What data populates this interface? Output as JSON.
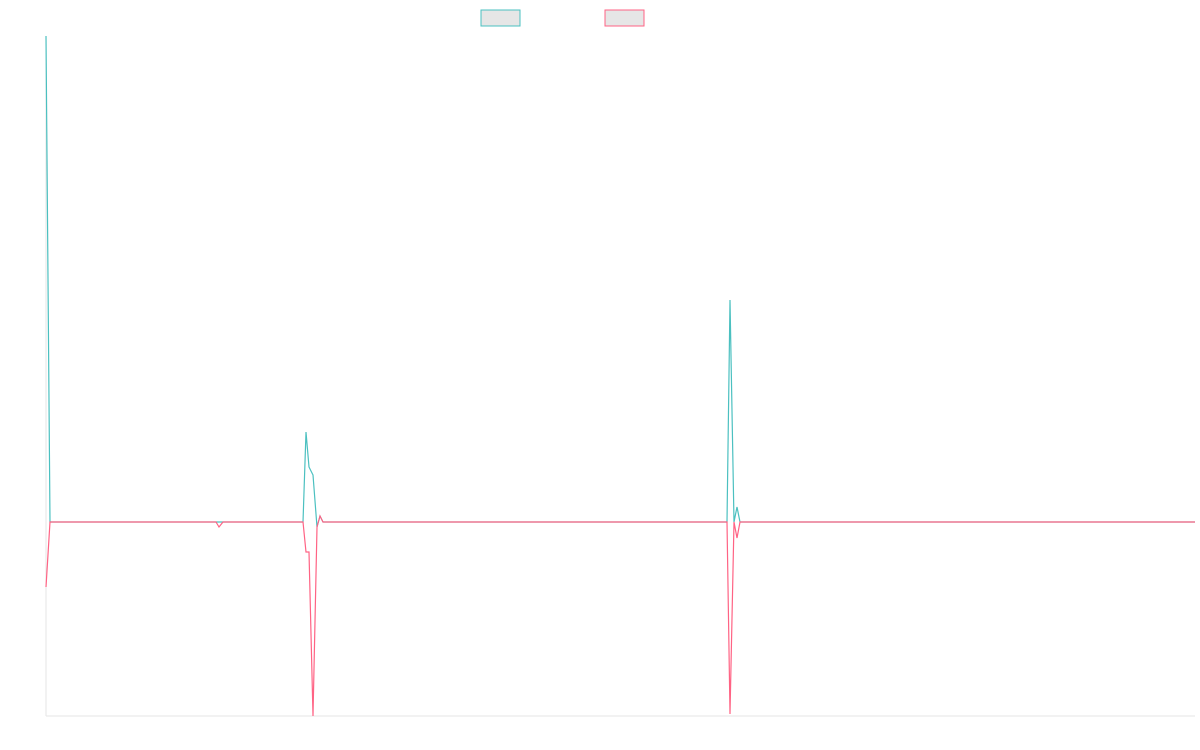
{
  "chart_data": {
    "type": "line",
    "x": [
      0,
      4,
      170,
      173,
      177,
      257,
      260,
      263,
      267,
      271,
      274,
      277,
      681,
      684,
      688,
      691,
      694,
      1149
    ],
    "xlim": [
      0,
      1149
    ],
    "ylim": [
      -194,
      486
    ],
    "series": [
      {
        "color": "#4bc0c0",
        "values": [
          486,
          0,
          0,
          0,
          0,
          0,
          90,
          55,
          47,
          -5,
          6,
          0,
          0,
          222,
          0,
          15,
          0,
          0
        ]
      },
      {
        "color": "#ff6384",
        "values": [
          -65,
          0,
          0,
          -5,
          0,
          0,
          -30,
          -30,
          -194,
          -5,
          6,
          0,
          0,
          -192,
          0,
          -16,
          0,
          0
        ]
      }
    ]
  }
}
